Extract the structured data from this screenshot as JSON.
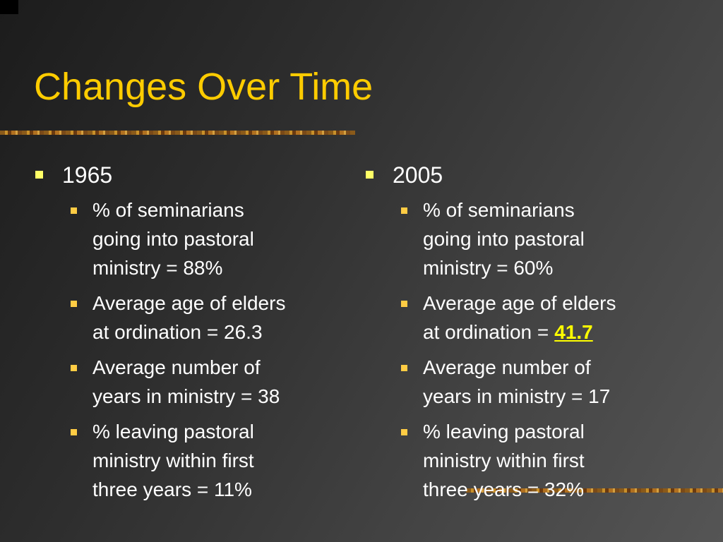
{
  "title": "Changes Over Time",
  "columns": [
    {
      "heading": "1965",
      "items": [
        {
          "lines": [
            "% of seminarians",
            "going into pastoral",
            "ministry = 88%"
          ]
        },
        {
          "lines": [
            "Average age of elders",
            "at ordination = 26.3"
          ]
        },
        {
          "lines": [
            "Average number of",
            "years in ministry = 38"
          ]
        },
        {
          "lines": [
            "% leaving pastoral",
            "ministry within first",
            "three years = 11%"
          ]
        }
      ]
    },
    {
      "heading": "2005",
      "items": [
        {
          "lines": [
            "% of seminarians",
            "going into pastoral",
            "ministry = 60%"
          ]
        },
        {
          "lines": [
            "Average age of elders",
            "at ordination ="
          ],
          "highlight": "41.7"
        },
        {
          "lines": [
            "Average number of",
            "years in ministry = 17"
          ]
        },
        {
          "lines": [
            "% leaving pastoral",
            "ministry within first",
            "three years = 32%"
          ]
        }
      ]
    }
  ]
}
